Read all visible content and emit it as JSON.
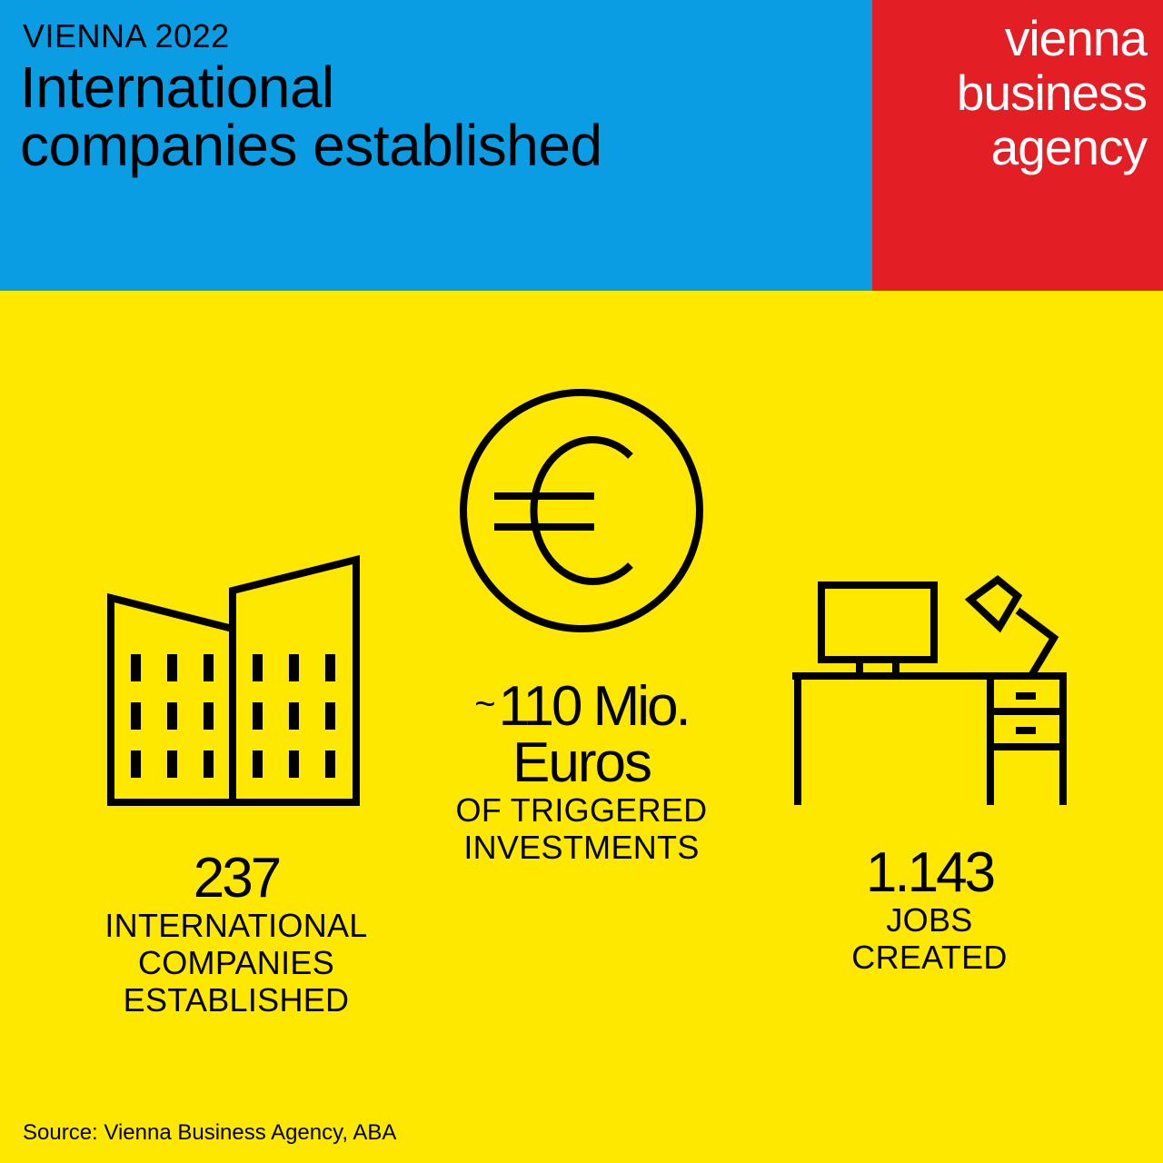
{
  "header": {
    "kicker": "VIENNA 2022",
    "title_line1": "International",
    "title_line2": "companies established",
    "background_color": "#0a9de3"
  },
  "logo": {
    "line1": "vienna",
    "line2": "business",
    "line3": "agency",
    "background_color": "#e31e24",
    "text_color": "#ffffff"
  },
  "main": {
    "background_color": "#ffe800"
  },
  "stats": [
    {
      "icon": "office-buildings-icon",
      "value": "237",
      "label_lines": [
        "INTERNATIONAL",
        "COMPANIES",
        "ESTABLISHED"
      ]
    },
    {
      "icon": "euro-coin-icon",
      "value_prefix": "~",
      "value": "110 Mio.",
      "value_line2": "Euros",
      "label_lines": [
        "OF TRIGGERED",
        "INVESTMENTS"
      ]
    },
    {
      "icon": "desk-workstation-icon",
      "value": "1.143",
      "label_lines": [
        "JOBS",
        "CREATED"
      ]
    }
  ],
  "footer": {
    "source": "Source: Vienna Business Agency, ABA"
  }
}
